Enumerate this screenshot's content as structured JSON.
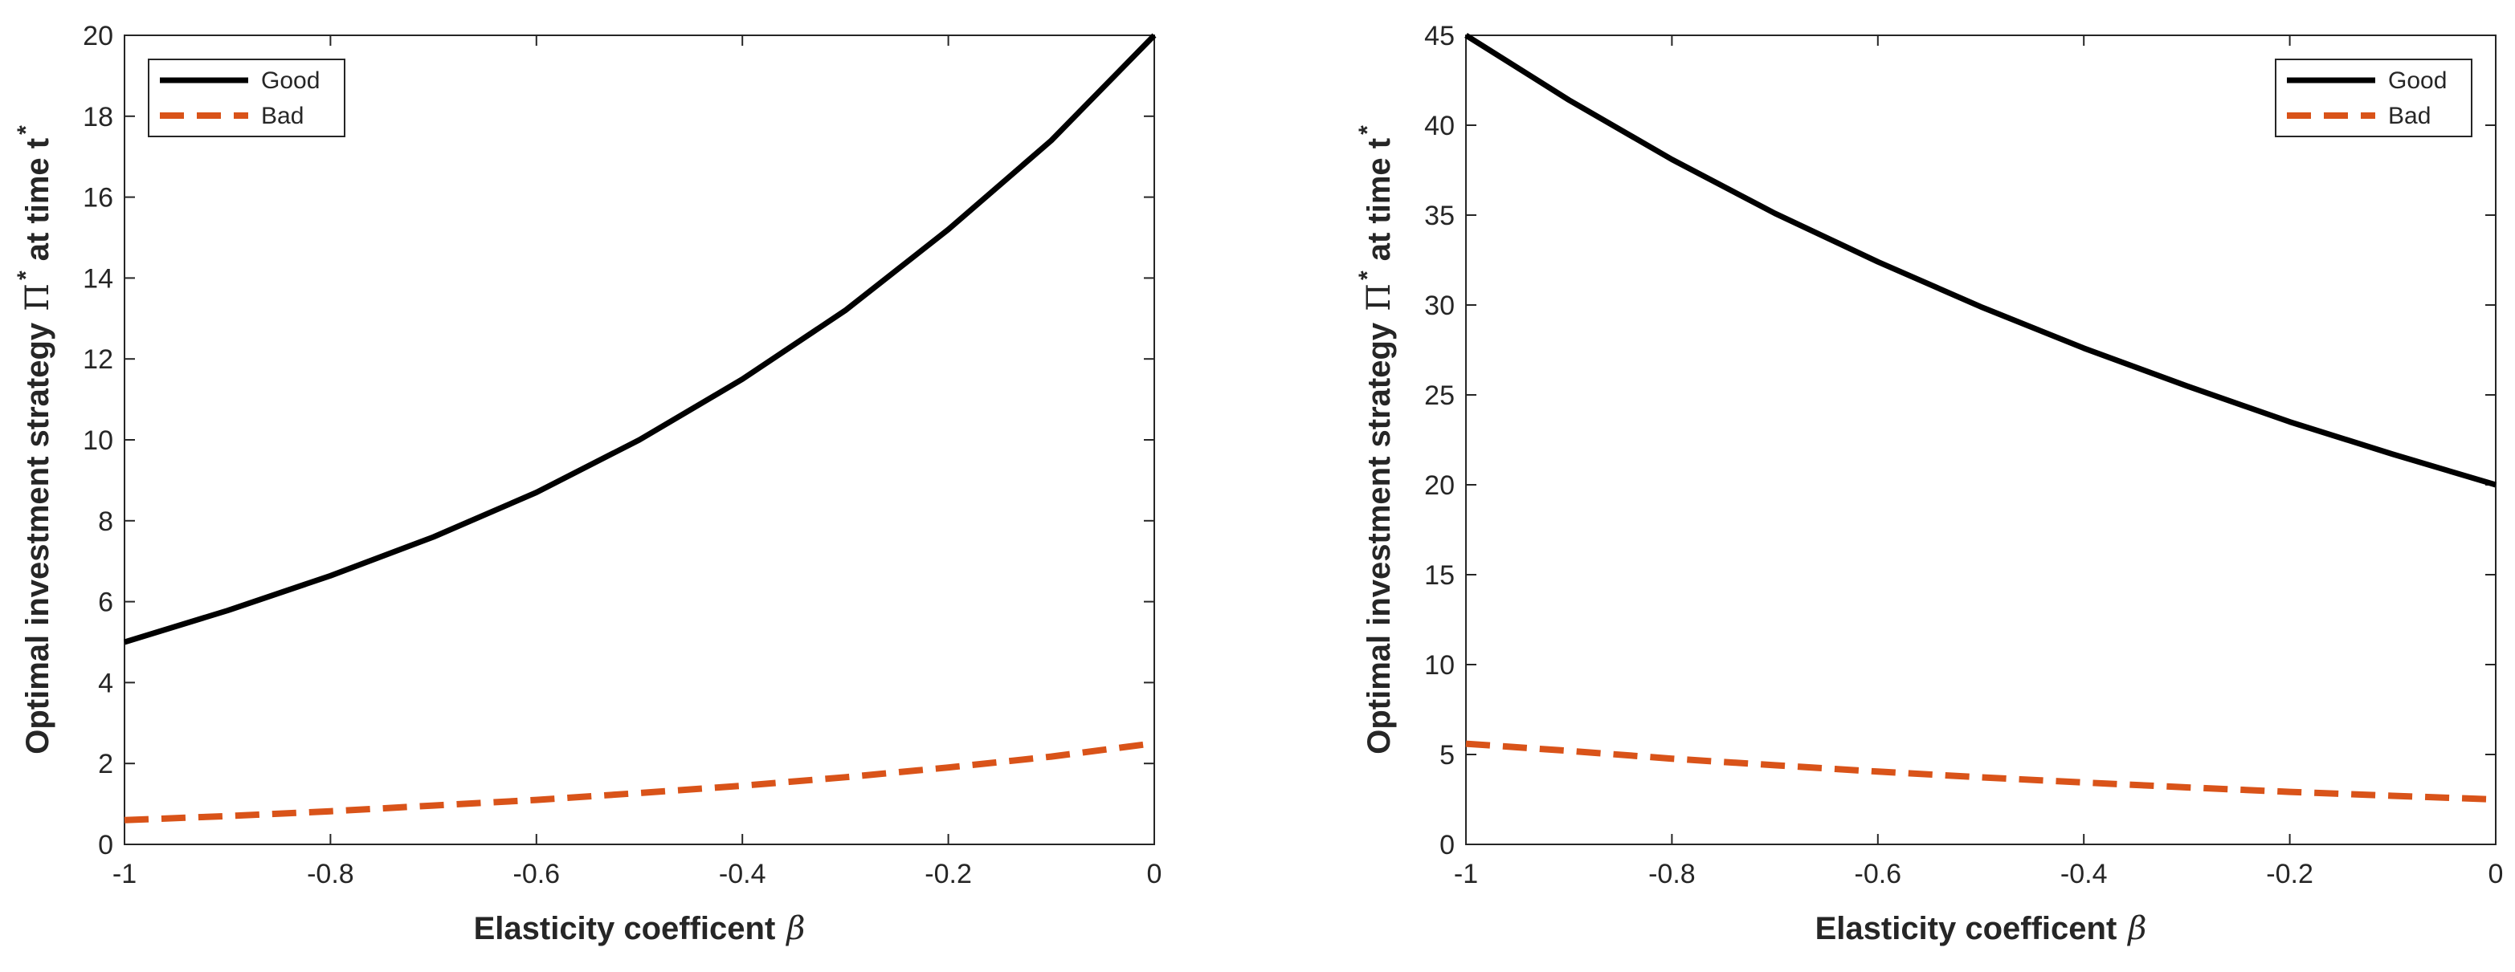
{
  "figure": {
    "title": "",
    "background": "#ffffff"
  },
  "styles": {
    "good_color": "#000000",
    "bad_color": "#D95319",
    "axis_color": "#262626"
  },
  "chart_data": [
    {
      "type": "line",
      "title": "",
      "xlabel": "Elasticity coefficent",
      "xlabel_symbol": "β",
      "ylabel": {
        "main": "Optimal investment strategy",
        "symbol": "Π",
        "superscript": "*",
        "suffix": "at time t",
        "suffix_superscript": "*"
      },
      "xlim": [
        -1,
        0
      ],
      "ylim": [
        0,
        20
      ],
      "xticks": [
        -1,
        -0.8,
        -0.6,
        -0.4,
        -0.2,
        0
      ],
      "xtick_labels": [
        "-1",
        "-0.8",
        "-0.6",
        "-0.4",
        "-0.2",
        "0"
      ],
      "yticks": [
        0,
        2,
        4,
        6,
        8,
        10,
        12,
        14,
        16,
        18,
        20
      ],
      "ytick_labels": [
        "0",
        "2",
        "4",
        "6",
        "8",
        "10",
        "12",
        "14",
        "16",
        "18",
        "20"
      ],
      "grid": false,
      "legend_position": "top-left",
      "x": [
        -1,
        -0.9,
        -0.8,
        -0.7,
        -0.6,
        -0.5,
        -0.4,
        -0.3,
        -0.2,
        -0.1,
        0
      ],
      "series": [
        {
          "name": "Good",
          "style": "solid",
          "values": [
            5.0,
            5.78,
            6.64,
            7.6,
            8.7,
            10.0,
            11.5,
            13.2,
            15.2,
            17.4,
            20.0
          ]
        },
        {
          "name": "Bad",
          "style": "dashed",
          "values": [
            0.6,
            0.7,
            0.82,
            0.96,
            1.1,
            1.27,
            1.45,
            1.66,
            1.9,
            2.17,
            2.5
          ]
        }
      ]
    },
    {
      "type": "line",
      "title": "",
      "xlabel": "Elasticity coefficent",
      "xlabel_symbol": "β",
      "ylabel": {
        "main": "Optimal investment strategy",
        "symbol": "Π",
        "superscript": "*",
        "suffix": "at time t",
        "suffix_superscript": "*"
      },
      "xlim": [
        -1,
        0
      ],
      "ylim": [
        0,
        45
      ],
      "xticks": [
        -1,
        -0.8,
        -0.6,
        -0.4,
        -0.2,
        0
      ],
      "xtick_labels": [
        "-1",
        "-0.8",
        "-0.6",
        "-0.4",
        "-0.2",
        "0"
      ],
      "yticks": [
        0,
        5,
        10,
        15,
        20,
        25,
        30,
        35,
        40,
        45
      ],
      "ytick_labels": [
        "0",
        "5",
        "10",
        "15",
        "20",
        "25",
        "30",
        "35",
        "40",
        "45"
      ],
      "grid": false,
      "legend_position": "top-right",
      "x": [
        -1,
        -0.9,
        -0.8,
        -0.7,
        -0.6,
        -0.5,
        -0.4,
        -0.3,
        -0.2,
        -0.1,
        0
      ],
      "series": [
        {
          "name": "Good",
          "style": "solid",
          "values": [
            45.0,
            41.4,
            38.1,
            35.1,
            32.4,
            29.9,
            27.6,
            25.5,
            23.5,
            21.7,
            20.0
          ]
        },
        {
          "name": "Bad",
          "style": "dashed",
          "values": [
            5.6,
            5.2,
            4.77,
            4.4,
            4.05,
            3.73,
            3.44,
            3.17,
            2.92,
            2.7,
            2.5
          ]
        }
      ]
    }
  ]
}
